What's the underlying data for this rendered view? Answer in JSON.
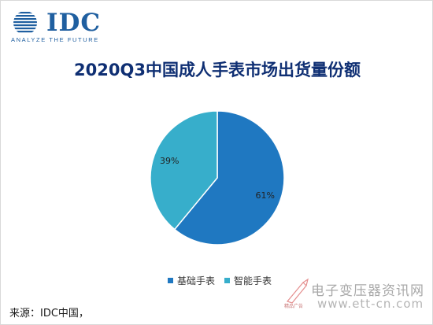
{
  "logo": {
    "word": "IDC",
    "tagline": "ANALYZE THE FUTURE"
  },
  "title": "2020Q3中国成人手表市场出货量份额",
  "chart_data": {
    "type": "pie",
    "categories": [
      "基础手表",
      "智能手表"
    ],
    "values": [
      61,
      39
    ],
    "labels": [
      "61%",
      "39%"
    ],
    "colors": [
      "#1f78c1",
      "#37aecb"
    ],
    "legend_position": "bottom"
  },
  "source": "来源：IDC中国，",
  "watermark": {
    "line1": "电子变压器资讯网",
    "line2": "www.ett-cn.com",
    "seal_text": "精品广告"
  }
}
